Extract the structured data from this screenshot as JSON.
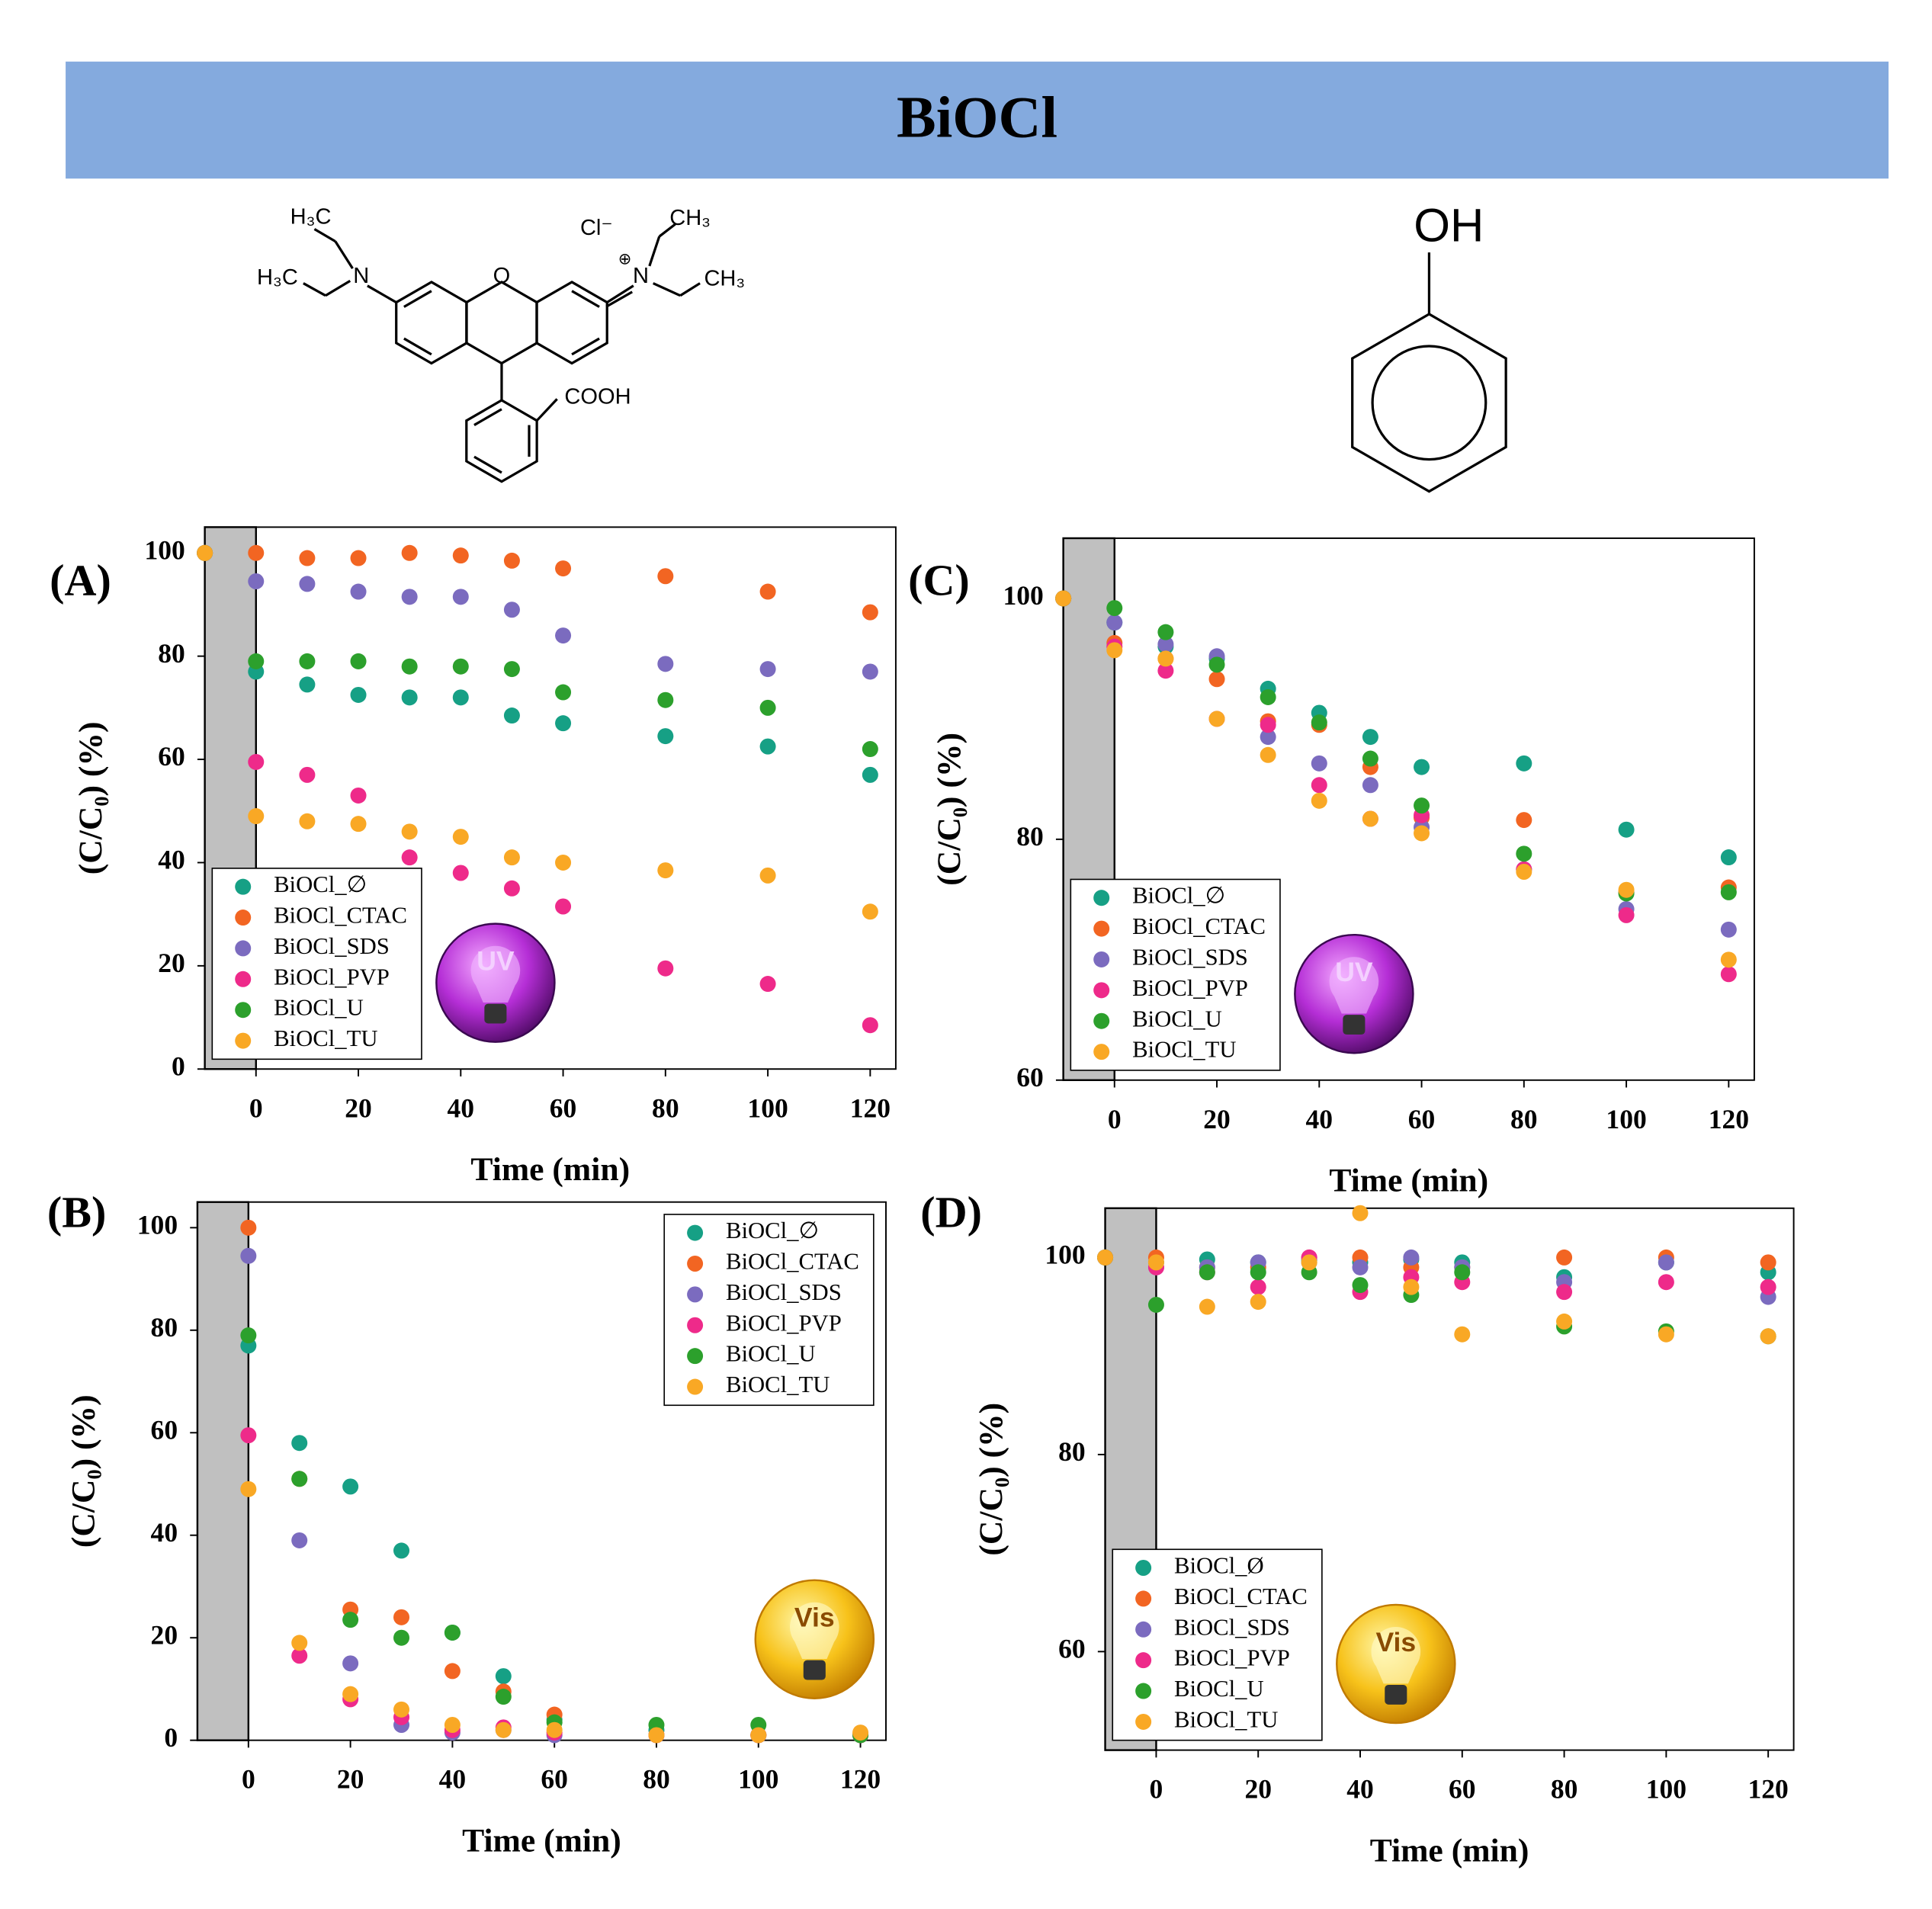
{
  "title": "BiOCl",
  "molecule_labels": {
    "rhodamine": [
      "H₃C",
      "H₃C",
      "N",
      "O",
      "CH₃",
      "CH₃",
      "N",
      "Cl⁻",
      "⊕",
      "COOH"
    ],
    "phenol": [
      "OH"
    ]
  },
  "chart_data": [
    {
      "type": "scatter",
      "label": "(A)",
      "icon_label": "UV",
      "x_label": "Time (min)",
      "y_label": "(C/C₀) (%)",
      "x": [
        -10,
        0,
        10,
        20,
        30,
        40,
        50,
        60,
        80,
        100,
        120
      ],
      "series": [
        {
          "name": "BiOCl_∅",
          "color": "#16a085",
          "values": [
            100,
            77,
            74.5,
            72.5,
            72,
            72,
            68.5,
            67,
            64.5,
            62.5,
            57
          ]
        },
        {
          "name": "BiOCl_CTAC",
          "color": "#f26522",
          "values": [
            100,
            100,
            99,
            99,
            100,
            99.5,
            98.5,
            97,
            95.5,
            92.5,
            88.5
          ]
        },
        {
          "name": "BiOCl_SDS",
          "color": "#7b6bbf",
          "values": [
            100,
            94.5,
            94,
            92.5,
            91.5,
            91.5,
            89,
            84,
            78.5,
            77.5,
            77
          ]
        },
        {
          "name": "BiOCl_PVP",
          "color": "#ee2a8a",
          "values": [
            100,
            59.5,
            57,
            53,
            41,
            38,
            35,
            31.5,
            19.5,
            16.5,
            8.5
          ]
        },
        {
          "name": "BiOCl_U",
          "color": "#2ca02c",
          "values": [
            100,
            79,
            79,
            79,
            78,
            78,
            77.5,
            73,
            71.5,
            70,
            62
          ]
        },
        {
          "name": "BiOCl_TU",
          "color": "#f9a825",
          "values": [
            100,
            49,
            48,
            47.5,
            46,
            45,
            41,
            40,
            38.5,
            37.5,
            30.5
          ]
        }
      ],
      "xlim": [
        -10,
        125
      ],
      "xticks": [
        0,
        20,
        40,
        60,
        80,
        100,
        120
      ],
      "ylim": [
        0,
        105
      ],
      "yticks": [
        0,
        20,
        40,
        60,
        80,
        100
      ],
      "shaded_xrange": [
        -10,
        0
      ],
      "legend": "lower left"
    },
    {
      "type": "scatter",
      "label": "(B)",
      "icon_label": "Vis",
      "x_label": "Time (min)",
      "y_label": "(C/C₀) (%)",
      "x": [
        0,
        10,
        20,
        30,
        40,
        50,
        60,
        80,
        100,
        120
      ],
      "series": [
        {
          "name": "BiOCl_∅",
          "color": "#16a085",
          "values": [
            77,
            58,
            49.5,
            37,
            21,
            12.5,
            4,
            2,
            1,
            1
          ]
        },
        {
          "name": "BiOCl_CTAC",
          "color": "#f26522",
          "values": [
            100,
            51,
            25.5,
            24,
            13.5,
            9.5,
            5,
            1,
            1,
            1
          ]
        },
        {
          "name": "BiOCl_SDS",
          "color": "#7b6bbf",
          "values": [
            94.5,
            39,
            15,
            3,
            1.5,
            2,
            1,
            1,
            1,
            1
          ]
        },
        {
          "name": "BiOCl_PVP",
          "color": "#ee2a8a",
          "values": [
            59.5,
            16.5,
            8,
            4.5,
            2,
            2.5,
            1.5,
            1,
            1,
            1
          ]
        },
        {
          "name": "BiOCl_U",
          "color": "#2ca02c",
          "values": [
            79,
            51,
            23.5,
            20,
            21,
            8.5,
            3.5,
            3,
            3,
            1
          ]
        },
        {
          "name": "BiOCl_TU",
          "color": "#f9a825",
          "values": [
            49,
            19,
            9,
            6,
            3,
            2,
            2,
            1,
            1,
            1.5
          ]
        }
      ],
      "xlim": [
        -10,
        125
      ],
      "xticks": [
        0,
        20,
        40,
        60,
        80,
        100,
        120
      ],
      "ylim": [
        0,
        105
      ],
      "yticks": [
        0,
        20,
        40,
        60,
        80,
        100
      ],
      "shaded_xrange": [
        -10,
        0
      ],
      "legend": "upper right"
    },
    {
      "type": "scatter",
      "label": "(C)",
      "icon_label": "UV",
      "x_label": "Time (min)",
      "y_label": "(C/C₀) (%)",
      "x": [
        -10,
        0,
        10,
        20,
        30,
        40,
        50,
        60,
        80,
        100,
        120
      ],
      "series": [
        {
          "name": "BiOCl_∅",
          "color": "#16a085",
          "values": [
            100,
            98,
            96,
            95,
            92.5,
            90.5,
            88.5,
            86,
            86.3,
            80.8,
            78.5
          ]
        },
        {
          "name": "BiOCl_CTAC",
          "color": "#f26522",
          "values": [
            100,
            96.3,
            95,
            93.3,
            89.8,
            89.5,
            86,
            81.8,
            81.6,
            75.6,
            76
          ]
        },
        {
          "name": "BiOCl_SDS",
          "color": "#7b6bbf",
          "values": [
            100,
            98,
            96.2,
            95.2,
            88.5,
            86.3,
            84.5,
            81,
            77.5,
            74.2,
            72.5
          ]
        },
        {
          "name": "BiOCl_PVP",
          "color": "#ee2a8a",
          "values": [
            100,
            96,
            94,
            90,
            89.5,
            84.5,
            81.7,
            82,
            77.5,
            73.7,
            68.8
          ]
        },
        {
          "name": "BiOCl_U",
          "color": "#2ca02c",
          "values": [
            100,
            99.2,
            97.2,
            94.5,
            91.8,
            89.7,
            86.7,
            82.8,
            78.8,
            75.5,
            75.6
          ]
        },
        {
          "name": "BiOCl_TU",
          "color": "#f9a825",
          "values": [
            100,
            95.7,
            95,
            90,
            87,
            83.2,
            81.7,
            80.5,
            77.3,
            75.8,
            70
          ]
        }
      ],
      "xlim": [
        -10,
        125
      ],
      "xticks": [
        0,
        20,
        40,
        60,
        80,
        100,
        120
      ],
      "ylim": [
        60,
        105
      ],
      "yticks": [
        60,
        80,
        100
      ],
      "shaded_xrange": [
        -10,
        0
      ],
      "legend": "lower left"
    },
    {
      "type": "scatter",
      "label": "(D)",
      "icon_label": "Vis",
      "x_label": "Time (min)",
      "y_label": "(C/C₀) (%)",
      "x": [
        -10,
        0,
        10,
        20,
        30,
        40,
        50,
        60,
        80,
        100,
        120
      ],
      "series": [
        {
          "name": "BiOCl_Ø",
          "color": "#16a085",
          "values": [
            100,
            99.5,
            99.8,
            99.5,
            99.7,
            99.5,
            99.8,
            99.5,
            98,
            99.5,
            98.5
          ]
        },
        {
          "name": "BiOCl_CTAC",
          "color": "#f26522",
          "values": [
            100,
            100,
            99,
            99,
            100,
            100,
            99,
            99,
            100,
            100,
            99.5
          ]
        },
        {
          "name": "BiOCl_SDS",
          "color": "#7b6bbf",
          "values": [
            100,
            99,
            99,
            99.5,
            99.5,
            99,
            100,
            99,
            97.5,
            99.5,
            96
          ]
        },
        {
          "name": "BiOCl_PVP",
          "color": "#ee2a8a",
          "values": [
            100,
            99,
            98.5,
            97,
            100,
            96.5,
            98,
            97.5,
            96.5,
            97.5,
            97
          ]
        },
        {
          "name": "BiOCl_U",
          "color": "#2ca02c",
          "values": [
            100,
            95.2,
            98.5,
            98.5,
            98.5,
            97.2,
            96.2,
            98.5,
            93,
            92.5,
            92
          ]
        },
        {
          "name": "BiOCl_TU",
          "color": "#f9a825",
          "values": [
            100,
            99.5,
            95,
            95.5,
            99.5,
            104.5,
            97,
            92.2,
            93.5,
            92.2,
            92
          ]
        }
      ],
      "xlim": [
        -10,
        125
      ],
      "xticks": [
        0,
        20,
        40,
        60,
        80,
        100,
        120
      ],
      "ylim": [
        50,
        105
      ],
      "yticks": [
        60,
        80,
        100
      ],
      "shaded_xrange": [
        -10,
        0
      ],
      "legend": "lower left"
    }
  ]
}
